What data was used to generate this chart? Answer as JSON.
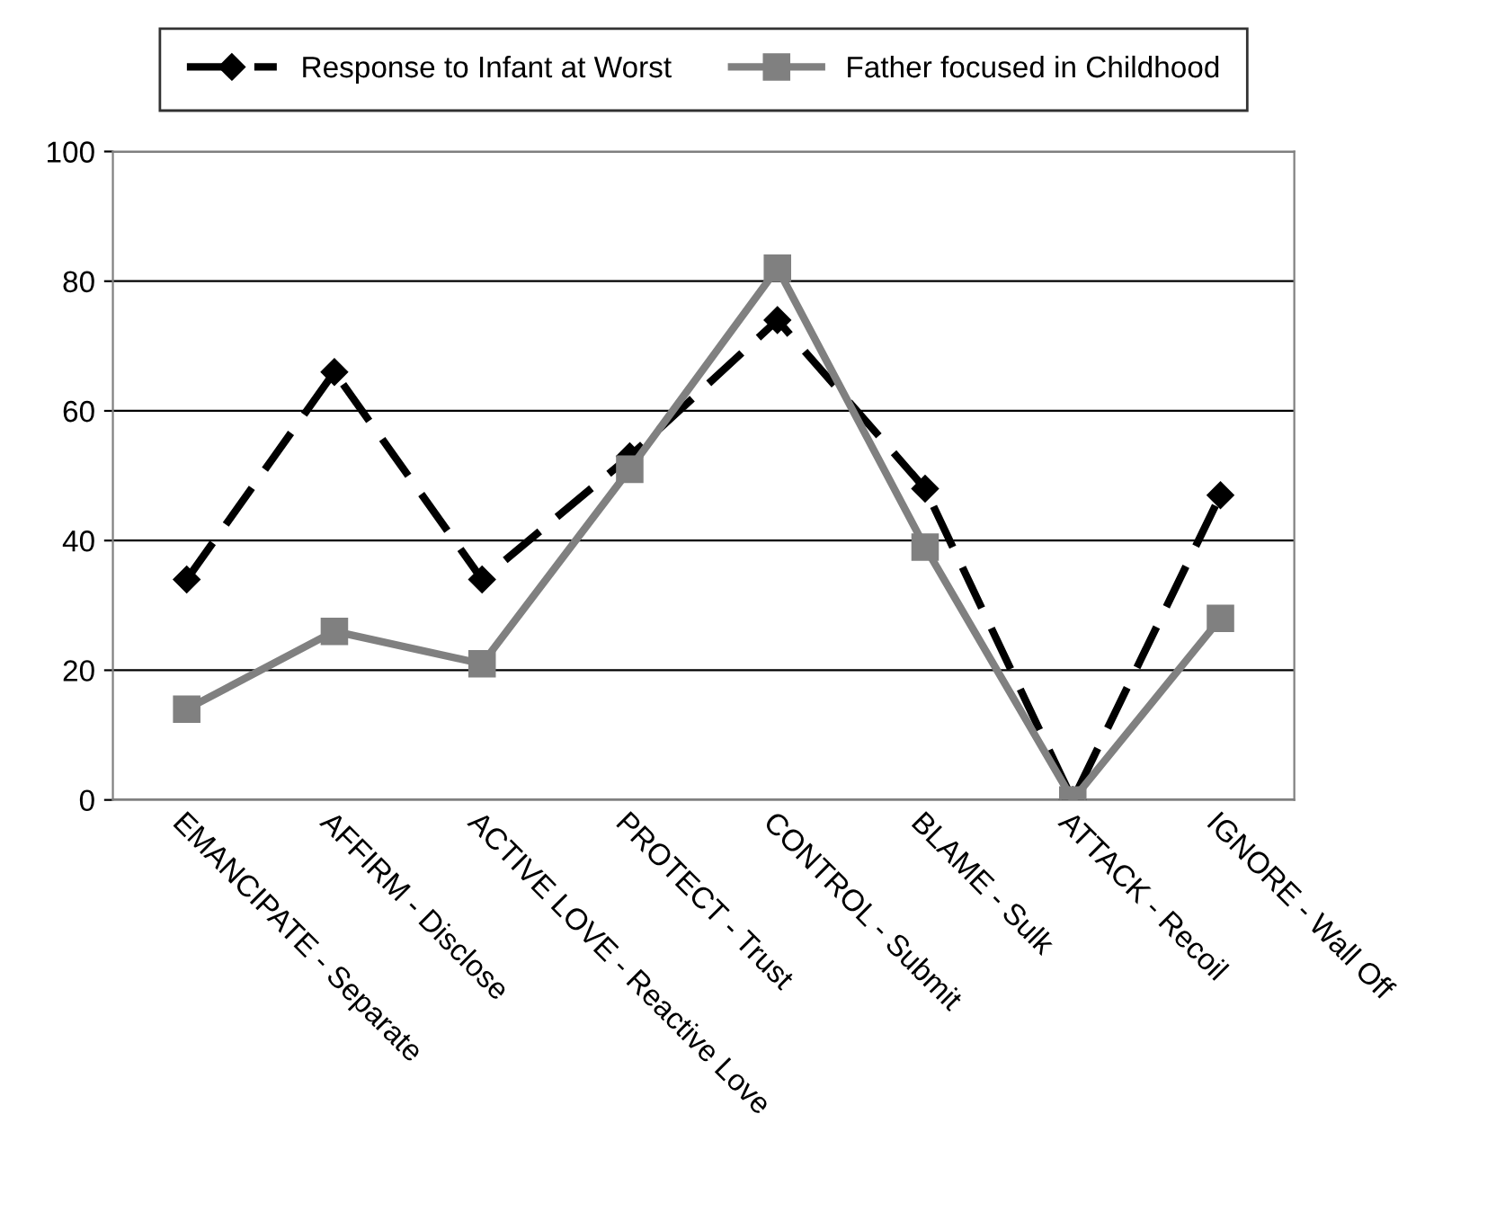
{
  "chart_data": {
    "type": "line",
    "categories": [
      "EMANCIPATE - Separate",
      "AFFIRM - Disclose",
      "ACTIVE LOVE - Reactive Love",
      "PROTECT - Trust",
      "CONTROL - Submit",
      "BLAME - Sulk",
      "ATTACK - Recoil",
      "IGNORE - Wall Off"
    ],
    "series": [
      {
        "name": "Response to Infant at Worst",
        "color": "#000000",
        "marker": "diamond",
        "line_style": "dashed",
        "values": [
          34,
          66,
          34,
          53,
          74,
          48,
          0,
          47
        ]
      },
      {
        "name": "Father focused in Childhood",
        "color": "#808080",
        "marker": "square",
        "line_style": "solid",
        "values": [
          14,
          26,
          21,
          51,
          82,
          39,
          0,
          28
        ]
      }
    ],
    "ylim": [
      0,
      100
    ],
    "yticks": [
      0,
      20,
      40,
      60,
      80,
      100
    ],
    "grid": "y",
    "legend": "top"
  }
}
